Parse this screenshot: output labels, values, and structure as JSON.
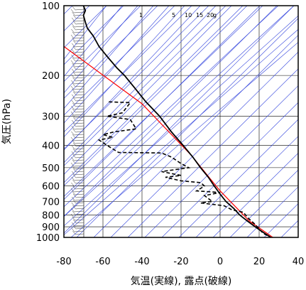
{
  "chart_data": {
    "type": "line",
    "xlabel": "気温(実線), 露点(破線)",
    "ylabel": "気圧(hPa)",
    "xlim": [
      -80,
      40
    ],
    "ylim": [
      1000,
      100
    ],
    "yscale": "log",
    "grid": true,
    "x_ticks": [
      "-80",
      "-60",
      "-40",
      "-20",
      "0",
      "20",
      "40"
    ],
    "y_ticks": [
      "100",
      "200",
      "300",
      "400",
      "500",
      "600",
      "700",
      "800",
      "900",
      "1000"
    ],
    "mixing_ratio_labels": [
      "1",
      "5",
      "10",
      "15",
      "20",
      "g"
    ],
    "series": [
      {
        "style": "solid",
        "color": "#000000",
        "points": [
          [
            -70,
            100
          ],
          [
            -69,
            105
          ],
          [
            -70,
            110
          ],
          [
            -69,
            118
          ],
          [
            -68,
            125
          ],
          [
            -65,
            135
          ],
          [
            -62,
            150
          ],
          [
            -58,
            165
          ],
          [
            -53,
            185
          ],
          [
            -49,
            200
          ],
          [
            -44,
            225
          ],
          [
            -38,
            260
          ],
          [
            -31,
            300
          ],
          [
            -25,
            350
          ],
          [
            -19,
            400
          ],
          [
            -14,
            450
          ],
          [
            -10,
            500
          ],
          [
            -6,
            550
          ],
          [
            -3,
            600
          ],
          [
            0,
            650
          ],
          [
            3,
            700
          ],
          [
            7,
            750
          ],
          [
            10,
            800
          ],
          [
            14,
            850
          ],
          [
            18,
            900
          ],
          [
            22,
            950
          ],
          [
            26,
            1000
          ]
        ]
      },
      {
        "style": "dashed",
        "color": "#000000",
        "points": [
          [
            -57,
            260
          ],
          [
            -46,
            262
          ],
          [
            -50,
            290
          ],
          [
            -58,
            300
          ],
          [
            -46,
            310
          ],
          [
            -43,
            340
          ],
          [
            -54,
            350
          ],
          [
            -60,
            360
          ],
          [
            -55,
            370
          ],
          [
            -62,
            380
          ],
          [
            -58,
            400
          ],
          [
            -52,
            430
          ],
          [
            -30,
            432
          ],
          [
            -25,
            450
          ],
          [
            -20,
            480
          ],
          [
            -16,
            500
          ],
          [
            -30,
            520
          ],
          [
            -20,
            540
          ],
          [
            -28,
            550
          ],
          [
            -20,
            570
          ],
          [
            -10,
            580
          ],
          [
            -8,
            600
          ],
          [
            -12,
            630
          ],
          [
            0,
            640
          ],
          [
            -8,
            660
          ],
          [
            -4,
            700
          ],
          [
            -10,
            710
          ],
          [
            2,
            730
          ],
          [
            6,
            760
          ],
          [
            12,
            780
          ],
          [
            14,
            820
          ],
          [
            18,
            880
          ],
          [
            20,
            920
          ],
          [
            22,
            960
          ],
          [
            26,
            1000
          ]
        ]
      },
      {
        "style": "solid",
        "color": "#ff0000",
        "points": [
          [
            -80,
            150
          ],
          [
            -40,
            265
          ],
          [
            -15,
            440
          ],
          [
            0,
            630
          ],
          [
            15,
            850
          ],
          [
            27,
            1000
          ]
        ]
      }
    ]
  }
}
